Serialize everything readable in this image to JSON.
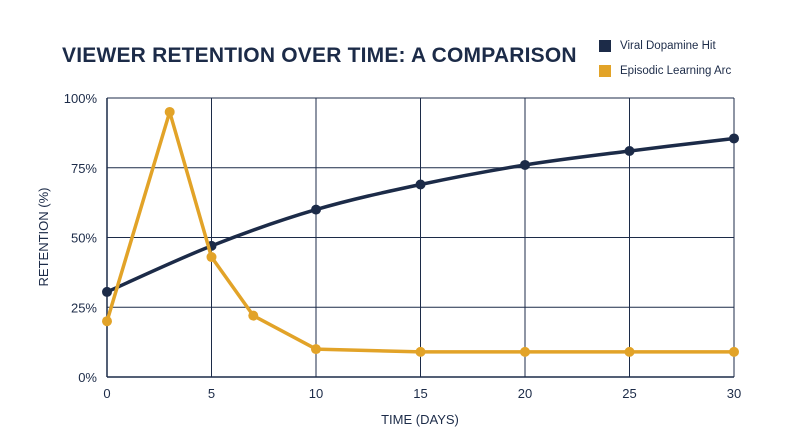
{
  "chart_data": {
    "type": "line",
    "title": "VIEWER RETENTION OVER TIME: A COMPARISON",
    "xlabel": "TIME (DAYS)",
    "ylabel": "RETENTION (%)",
    "xlim": [
      0,
      30
    ],
    "ylim": [
      0,
      100
    ],
    "x_ticks": [
      0,
      5,
      10,
      15,
      20,
      25,
      30
    ],
    "x_tick_labels": [
      "0",
      "5",
      "10",
      "15",
      "20",
      "25",
      "30"
    ],
    "y_ticks": [
      0,
      25,
      50,
      75,
      100
    ],
    "y_tick_labels": [
      "0%",
      "25%",
      "50%",
      "75%",
      "100%"
    ],
    "grid": true,
    "legend_position": "top-right",
    "series": [
      {
        "name": "Viral Dopamine Hit",
        "color": "#1c2b48",
        "style": "curve",
        "x": [
          0,
          5,
          10,
          15,
          20,
          25,
          30
        ],
        "y": [
          30.5,
          47,
          60,
          69,
          76,
          81,
          85.5
        ]
      },
      {
        "name": "Episodic Learning Arc",
        "color": "#e2a328",
        "style": "straight",
        "x": [
          0,
          3,
          5,
          7,
          10,
          15,
          20,
          25,
          30
        ],
        "y": [
          20,
          95,
          43,
          22,
          10,
          9,
          9,
          9,
          9
        ]
      }
    ]
  }
}
